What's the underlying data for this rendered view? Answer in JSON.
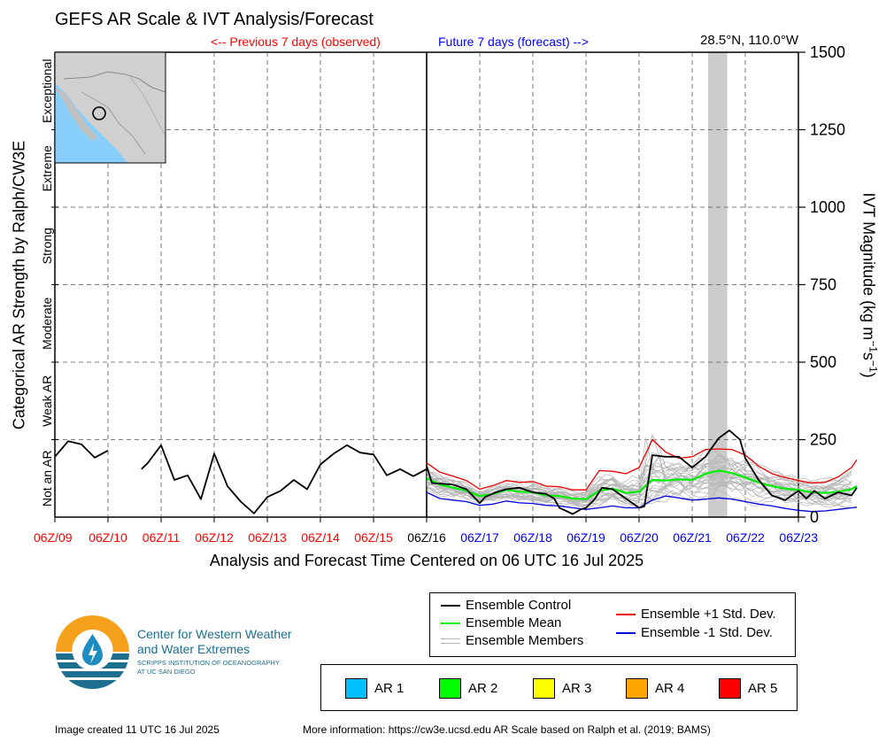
{
  "header": {
    "title": "GEFS AR Scale & IVT Analysis/Forecast",
    "previous_label": "<-- Previous 7 days (observed)",
    "future_label": "Future 7 days (forecast) -->",
    "location": "28.5°N, 110.0°W"
  },
  "axes": {
    "left_label": "Categorical AR Strength by Ralph/CW3E",
    "right_label_main": "IVT Magnitude (kg m",
    "right_label_sup1": "−1",
    "right_label_mid": "s",
    "right_label_sup2": "−1",
    "right_label_end": ")",
    "x_label": "Analysis and Forecast Time Centered on 06 UTC 16 Jul 2025",
    "categories": [
      "Not an AR",
      "Weak AR",
      "Moderate",
      "Strong",
      "Extreme",
      "Exceptional"
    ],
    "y_ticks": [
      "0",
      "250",
      "500",
      "750",
      "1000",
      "1250",
      "1500"
    ]
  },
  "colors": {
    "observed": "#ff0000",
    "forecast": "#0000ff",
    "control": "#000000",
    "mean": "#00ee00",
    "plus_std": "#ee0000",
    "minus_std": "#0000dd",
    "members": "#b4b4b4",
    "shade": "#cccccc"
  },
  "legend": {
    "control": "Ensemble Control",
    "mean": "Ensemble Mean",
    "members": "Ensemble Members",
    "plus": "Ensemble +1 Std. Dev.",
    "minus": "Ensemble -1 Std. Dev."
  },
  "ar_scale": [
    {
      "label": "AR 1",
      "color": "#00bfff"
    },
    {
      "label": "AR 2",
      "color": "#00ff00"
    },
    {
      "label": "AR 3",
      "color": "#ffff00"
    },
    {
      "label": "AR 4",
      "color": "#ffa500"
    },
    {
      "label": "AR 5",
      "color": "#ff0000"
    }
  ],
  "logo": {
    "line1": "Center for Western Weather",
    "line2": "and Water Extremes",
    "line3": "SCRIPPS INSTITUTION OF OCEANOGRAPHY",
    "line4": "AT UC SAN DIEGO"
  },
  "footer": {
    "created": "Image created 11 UTC 16 Jul 2025",
    "info": "More information: https://cw3e.ucsd.edu AR Scale based on Ralph et al. (2019; BAMS)"
  },
  "chart_data": {
    "type": "line",
    "title": "GEFS AR Scale & IVT Analysis/Forecast",
    "xlabel": "Analysis and Forecast Time Centered on 06 UTC 16 Jul 2025",
    "ylabel": "IVT Magnitude (kg m-1 s-1)",
    "ylim": [
      0,
      1500
    ],
    "x_ticks": [
      "06Z/09",
      "06Z/10",
      "06Z/11",
      "06Z/12",
      "06Z/13",
      "06Z/14",
      "06Z/15",
      "06Z/16",
      "06Z/17",
      "06Z/18",
      "06Z/19",
      "06Z/20",
      "06Z/21",
      "06Z/22",
      "06Z/23"
    ],
    "x_tick_status": [
      "observed",
      "observed",
      "observed",
      "observed",
      "observed",
      "observed",
      "observed",
      "now",
      "forecast",
      "forecast",
      "forecast",
      "forecast",
      "forecast",
      "forecast",
      "forecast"
    ],
    "shaded_x": [
      12.3,
      12.66
    ],
    "observed": [
      [
        [
          0.0,
          195
        ],
        [
          0.25,
          245
        ],
        [
          0.5,
          235
        ],
        [
          0.75,
          192
        ],
        [
          1.0,
          215
        ]
      ],
      [
        [
          1.63,
          155
        ],
        [
          1.75,
          175
        ],
        [
          2.0,
          232
        ],
        [
          2.25,
          120
        ],
        [
          2.5,
          135
        ],
        [
          2.75,
          58
        ],
        [
          3.0,
          205
        ],
        [
          3.25,
          100
        ],
        [
          3.5,
          50
        ],
        [
          3.75,
          12
        ],
        [
          4.0,
          65
        ],
        [
          4.25,
          85
        ],
        [
          4.5,
          120
        ],
        [
          4.75,
          90
        ],
        [
          5.0,
          170
        ],
        [
          5.25,
          205
        ],
        [
          5.5,
          232
        ],
        [
          5.75,
          208
        ],
        [
          6.0,
          202
        ],
        [
          6.25,
          135
        ],
        [
          6.5,
          155
        ],
        [
          6.75,
          132
        ],
        [
          7.0,
          155
        ]
      ]
    ],
    "control": [
      [
        7.0,
        165
      ],
      [
        7.1,
        110
      ],
      [
        7.5,
        105
      ],
      [
        7.75,
        90
      ],
      [
        8.0,
        45
      ],
      [
        8.1,
        65
      ],
      [
        8.3,
        80
      ],
      [
        8.5,
        90
      ],
      [
        8.75,
        95
      ],
      [
        9.0,
        80
      ],
      [
        9.25,
        75
      ],
      [
        9.4,
        60
      ],
      [
        9.5,
        30
      ],
      [
        9.75,
        10
      ],
      [
        9.9,
        25
      ],
      [
        10.0,
        30
      ],
      [
        10.15,
        55
      ],
      [
        10.3,
        95
      ],
      [
        10.5,
        90
      ],
      [
        10.75,
        60
      ],
      [
        11.0,
        30
      ],
      [
        11.1,
        35
      ],
      [
        11.25,
        200
      ],
      [
        11.5,
        195
      ],
      [
        11.75,
        195
      ],
      [
        12.0,
        160
      ],
      [
        12.25,
        195
      ],
      [
        12.5,
        255
      ],
      [
        12.7,
        280
      ],
      [
        12.9,
        250
      ],
      [
        13.0,
        190
      ],
      [
        13.25,
        120
      ],
      [
        13.5,
        70
      ],
      [
        13.75,
        55
      ],
      [
        14.0,
        85
      ],
      [
        14.15,
        60
      ],
      [
        14.3,
        85
      ],
      [
        14.5,
        60
      ],
      [
        14.75,
        80
      ],
      [
        15.0,
        70
      ],
      [
        15.1,
        95
      ]
    ],
    "mean": [
      [
        7.0,
        125
      ],
      [
        7.25,
        105
      ],
      [
        7.5,
        95
      ],
      [
        7.75,
        85
      ],
      [
        8.0,
        68
      ],
      [
        8.25,
        75
      ],
      [
        8.5,
        88
      ],
      [
        8.75,
        82
      ],
      [
        9.0,
        80
      ],
      [
        9.25,
        70
      ],
      [
        9.5,
        68
      ],
      [
        9.75,
        60
      ],
      [
        10.0,
        58
      ],
      [
        10.25,
        85
      ],
      [
        10.5,
        92
      ],
      [
        10.75,
        78
      ],
      [
        11.0,
        82
      ],
      [
        11.25,
        120
      ],
      [
        11.5,
        118
      ],
      [
        11.75,
        122
      ],
      [
        12.0,
        120
      ],
      [
        12.25,
        140
      ],
      [
        12.5,
        150
      ],
      [
        12.75,
        142
      ],
      [
        13.0,
        128
      ],
      [
        13.25,
        112
      ],
      [
        13.5,
        100
      ],
      [
        13.75,
        92
      ],
      [
        14.0,
        88
      ],
      [
        14.25,
        80
      ],
      [
        14.5,
        78
      ],
      [
        14.75,
        82
      ],
      [
        15.0,
        90
      ],
      [
        15.1,
        100
      ]
    ],
    "plus_std": [
      [
        7.0,
        175
      ],
      [
        7.25,
        145
      ],
      [
        7.5,
        132
      ],
      [
        7.75,
        118
      ],
      [
        8.0,
        90
      ],
      [
        8.25,
        102
      ],
      [
        8.5,
        118
      ],
      [
        8.75,
        112
      ],
      [
        9.0,
        115
      ],
      [
        9.25,
        100
      ],
      [
        9.5,
        98
      ],
      [
        9.75,
        88
      ],
      [
        10.0,
        88
      ],
      [
        10.25,
        150
      ],
      [
        10.5,
        148
      ],
      [
        10.75,
        140
      ],
      [
        11.0,
        160
      ],
      [
        11.25,
        250
      ],
      [
        11.5,
        210
      ],
      [
        11.75,
        190
      ],
      [
        12.0,
        195
      ],
      [
        12.25,
        218
      ],
      [
        12.5,
        220
      ],
      [
        12.75,
        218
      ],
      [
        13.0,
        200
      ],
      [
        13.25,
        165
      ],
      [
        13.5,
        140
      ],
      [
        13.75,
        128
      ],
      [
        14.0,
        118
      ],
      [
        14.25,
        110
      ],
      [
        14.5,
        112
      ],
      [
        14.75,
        130
      ],
      [
        15.0,
        160
      ],
      [
        15.1,
        185
      ]
    ],
    "minus_std": [
      [
        7.0,
        80
      ],
      [
        7.25,
        60
      ],
      [
        7.5,
        55
      ],
      [
        7.75,
        50
      ],
      [
        8.0,
        38
      ],
      [
        8.25,
        42
      ],
      [
        8.5,
        52
      ],
      [
        8.75,
        46
      ],
      [
        9.0,
        44
      ],
      [
        9.25,
        38
      ],
      [
        9.5,
        36
      ],
      [
        9.75,
        30
      ],
      [
        10.0,
        25
      ],
      [
        10.25,
        30
      ],
      [
        10.5,
        36
      ],
      [
        10.75,
        30
      ],
      [
        11.0,
        30
      ],
      [
        11.25,
        55
      ],
      [
        11.5,
        68
      ],
      [
        11.75,
        62
      ],
      [
        12.0,
        55
      ],
      [
        12.25,
        58
      ],
      [
        12.5,
        62
      ],
      [
        12.75,
        58
      ],
      [
        13.0,
        50
      ],
      [
        13.25,
        42
      ],
      [
        13.5,
        36
      ],
      [
        13.75,
        28
      ],
      [
        14.0,
        22
      ],
      [
        14.25,
        18
      ],
      [
        14.5,
        20
      ],
      [
        14.75,
        25
      ],
      [
        15.0,
        30
      ],
      [
        15.1,
        32
      ]
    ],
    "members_count": 30
  }
}
